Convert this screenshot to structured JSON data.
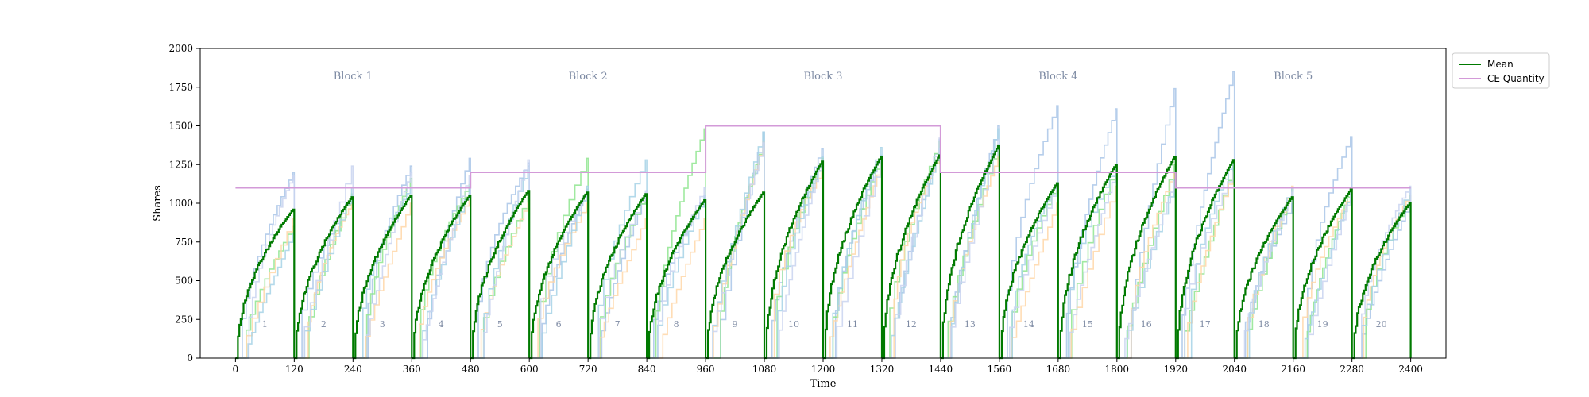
{
  "chart_data": {
    "type": "line",
    "xlabel": "Time",
    "ylabel": "Shares",
    "xlim": [
      -72,
      2472
    ],
    "ylim": [
      0,
      2000
    ],
    "xticks": [
      0,
      120,
      240,
      360,
      480,
      600,
      720,
      840,
      960,
      1080,
      1200,
      1320,
      1440,
      1560,
      1680,
      1800,
      1920,
      2040,
      2160,
      2280,
      2400
    ],
    "yticks": [
      0,
      250,
      500,
      750,
      1000,
      1250,
      1500,
      1750,
      2000
    ],
    "period_length": 120,
    "legend": {
      "placement": "outside-top-right",
      "entries": [
        "Mean",
        "CE Quantity"
      ]
    },
    "blocks": [
      {
        "label": "Block 1",
        "x": 240
      },
      {
        "label": "Block 2",
        "x": 720
      },
      {
        "label": "Block 3",
        "x": 1200
      },
      {
        "label": "Block 4",
        "x": 1680
      },
      {
        "label": "Block 5",
        "x": 2160
      }
    ],
    "period_labels": [
      "1",
      "2",
      "3",
      "4",
      "5",
      "6",
      "7",
      "8",
      "9",
      "10",
      "11",
      "12",
      "13",
      "14",
      "15",
      "16",
      "17",
      "18",
      "19",
      "20"
    ],
    "ce_quantity": [
      {
        "x_start": 0,
        "x_end": 480,
        "y": 1100
      },
      {
        "x_start": 480,
        "x_end": 960,
        "y": 1200
      },
      {
        "x_start": 960,
        "x_end": 1440,
        "y": 1500
      },
      {
        "x_start": 1440,
        "x_end": 1920,
        "y": 1200
      },
      {
        "x_start": 1920,
        "x_end": 2400,
        "y": 1100
      }
    ],
    "mean_final": [
      960,
      1040,
      1050,
      1050,
      1080,
      1070,
      1060,
      1020,
      1070,
      1270,
      1300,
      1310,
      1370,
      1130,
      1250,
      1300,
      1280,
      1040,
      1090,
      1000,
      1000
    ],
    "series": [
      {
        "name": "Mean",
        "color": "#007a00"
      },
      {
        "name": "CE Quantity",
        "color": "#d39ad8"
      }
    ],
    "trader_colors": [
      "#a9c6e8",
      "#8fe58f",
      "#ffd7a8",
      "#a6d2e6",
      "#c9d4f0"
    ],
    "trader_final": [
      [
        1200,
        1050,
        1240,
        1290,
        1260,
        1090,
        1060,
        1050,
        1460,
        1350,
        1310,
        1410,
        1500,
        1630,
        1610,
        1740,
        1850,
        1000,
        1430,
        1000,
        1150
      ],
      [
        850,
        1060,
        1160,
        1120,
        1040,
        1290,
        1060,
        1480,
        1380,
        1290,
        1300,
        1400,
        1380,
        1130,
        1240,
        1250,
        1240,
        1100,
        1090,
        1050,
        1100
      ],
      [
        900,
        1000,
        1000,
        1030,
        1000,
        1000,
        900,
        900,
        1400,
        1220,
        1250,
        1300,
        1300,
        1000,
        1110,
        1200,
        1200,
        1110,
        1060,
        1050,
        830
      ],
      [
        800,
        1100,
        1100,
        1100,
        1240,
        1110,
        1280,
        1050,
        1460,
        1300,
        1360,
        1350,
        1480,
        1130,
        1240,
        1150,
        1280,
        1100,
        1060,
        1100,
        1120
      ],
      [
        1180,
        1240,
        1200,
        1180,
        1280,
        1070,
        1080,
        1100,
        1390,
        1280,
        1290,
        1420,
        1410,
        1120,
        1200,
        1140,
        1210,
        1070,
        1080,
        1110,
        1100
      ]
    ]
  }
}
